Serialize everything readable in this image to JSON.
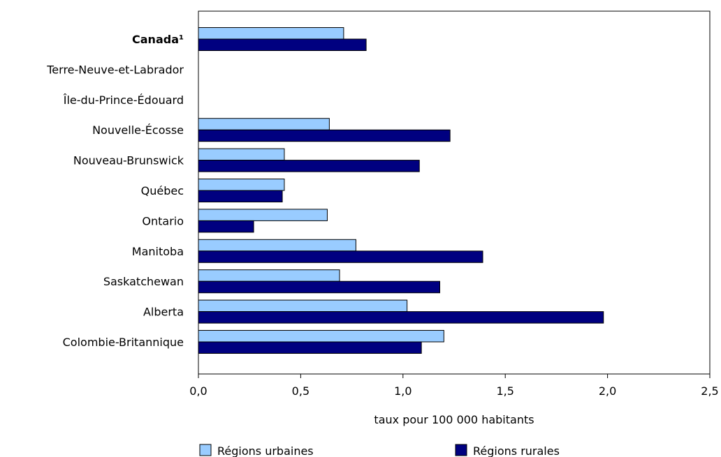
{
  "chart_data": {
    "type": "bar",
    "orientation": "horizontal",
    "categories": [
      "Canada¹",
      "Terre-Neuve-et-Labrador",
      "Île-du-Prince-Édouard",
      "Nouvelle-Écosse",
      "Nouveau-Brunswick",
      "Québec",
      "Ontario",
      "Manitoba",
      "Saskatchewan",
      "Alberta",
      "Colombie-Britannique"
    ],
    "bold_categories": [
      "Canada¹"
    ],
    "series": [
      {
        "name": "Régions urbaines",
        "color": "#99ccff",
        "values": [
          0.71,
          0.0,
          0.0,
          0.64,
          0.42,
          0.42,
          0.63,
          0.77,
          0.69,
          1.02,
          1.2
        ]
      },
      {
        "name": "Régions rurales",
        "color": "#000080",
        "values": [
          0.82,
          0.0,
          0.0,
          1.23,
          1.08,
          0.41,
          0.27,
          1.39,
          1.18,
          1.98,
          1.09
        ]
      }
    ],
    "xlabel": "taux pour 100 000 habitants",
    "ylabel": "",
    "xlim": [
      0,
      2.5
    ],
    "xticks": [
      0,
      0.5,
      1.0,
      1.5,
      2.0,
      2.5
    ],
    "xtick_labels": [
      "0,0",
      "0,5",
      "1,0",
      "1,5",
      "2,0",
      "2,5"
    ],
    "grid": false,
    "legend_position": "bottom"
  }
}
